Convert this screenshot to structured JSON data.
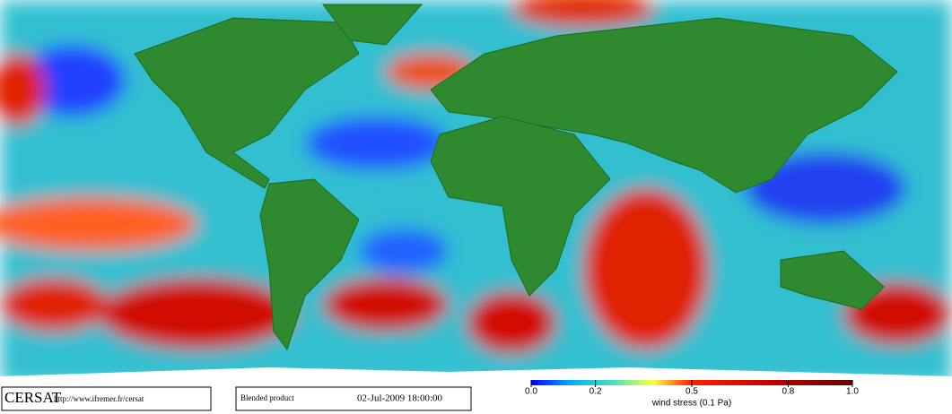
{
  "footer": {
    "logo": "CERSAT",
    "url": "http://www.ifremer.fr/cersat",
    "product": "Blended product",
    "datetime": "02-Jul-2009 18:00:00"
  },
  "colorbar": {
    "label": "wind stress (0.1 Pa)",
    "lim": [
      0,
      1
    ],
    "ticks": [
      {
        "value": 0,
        "label": "0.0"
      },
      0.2,
      0.5,
      0.8,
      {
        "value": 1,
        "label": "1.0"
      }
    ]
  }
}
